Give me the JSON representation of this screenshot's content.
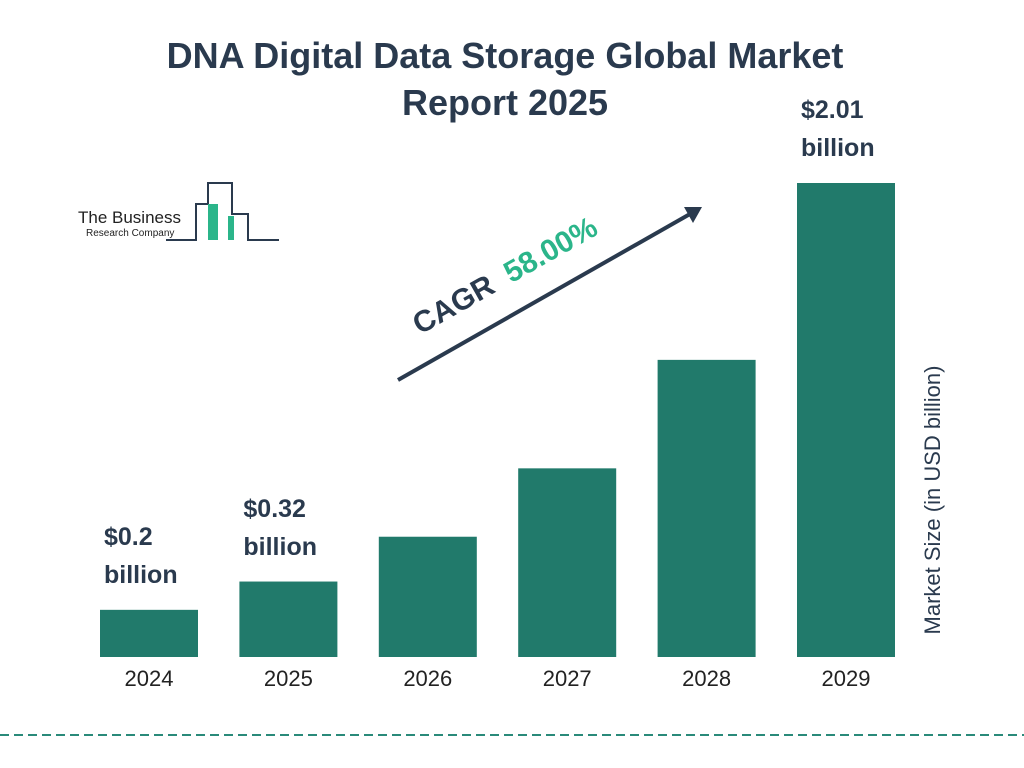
{
  "chart_data": {
    "type": "bar",
    "title": "DNA Digital Data Storage Global Market Report 2025",
    "categories": [
      "2024",
      "2025",
      "2026",
      "2027",
      "2028",
      "2029"
    ],
    "values": [
      0.2,
      0.32,
      0.51,
      0.8,
      1.26,
      2.01
    ],
    "value_labels": [
      "$0.2 billion",
      "$0.32 billion",
      null,
      null,
      null,
      "$2.01 billion"
    ],
    "color": "#217a6b",
    "y_axis_label": "Market Size (in USD billion)",
    "cagr_label": "CAGR",
    "cagr_value": "58.00%",
    "logo": {
      "line1": "The Business",
      "line2": "Research Company"
    }
  }
}
